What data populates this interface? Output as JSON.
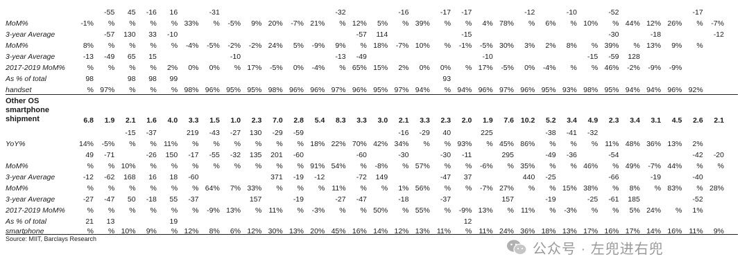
{
  "cols": 27,
  "colRight0": 133,
  "colStep": 35.6,
  "top": [
    {
      "label": "MoM%",
      "up": [
        "",
        "-55",
        "45",
        "-16",
        "16",
        "",
        "-31",
        "",
        "",
        "",
        "",
        "",
        "-32",
        "",
        "",
        "-16",
        "",
        "-17",
        "-17",
        "",
        "",
        "-12",
        "",
        "-10",
        "",
        "-52",
        "",
        "",
        "",
        "-17",
        ""
      ],
      "vals": [
        "-1%",
        "%",
        "%",
        "%",
        "%",
        "33%",
        "%",
        "-5%",
        "9%",
        "20%",
        "-7%",
        "21%",
        "%",
        "12%",
        "5%",
        "%",
        "39%",
        "%",
        "%",
        "4%",
        "78%",
        "%",
        "6%",
        "%",
        "10%",
        "%",
        "44%",
        "12%",
        "26%",
        "%",
        "-7%"
      ]
    },
    {
      "label": "3-year Average",
      "up": [],
      "vals": [
        "",
        "-57",
        "130",
        "33",
        "-10",
        "",
        "",
        "",
        "",
        "",
        "",
        "",
        "",
        "-57",
        "114",
        "",
        "",
        "",
        "-15",
        "",
        "",
        "",
        "",
        "",
        "",
        "-30",
        "",
        "-18",
        "",
        "",
        "-12"
      ]
    },
    {
      "label": "MoM%",
      "up": [],
      "vals": [
        "8%",
        "%",
        "%",
        "%",
        "%",
        "-4%",
        "-5%",
        "-2%",
        "-2%",
        "24%",
        "5%",
        "-9%",
        "9%",
        "%",
        "18%",
        "-7%",
        "10%",
        "%",
        "-1%",
        "-5%",
        "30%",
        "3%",
        "2%",
        "8%",
        "%",
        "39%",
        "%",
        "13%",
        "9%",
        "%",
        ""
      ]
    },
    {
      "label": "3-year Average",
      "up": [],
      "vals": [
        "-13",
        "-49",
        "65",
        "15",
        "",
        "",
        "",
        "-10",
        "",
        "",
        "",
        "",
        "-13",
        "-49",
        "",
        "",
        "",
        "",
        "",
        "-10",
        "",
        "",
        "",
        "",
        "-15",
        "-59",
        "128",
        "",
        "",
        "",
        ""
      ]
    },
    {
      "label": "2017-2019 MoM%",
      "up": [],
      "vals": [
        "%",
        "%",
        "%",
        "%",
        "2%",
        "0%",
        "0%",
        "%",
        "17%",
        "-5%",
        "0%",
        "-4%",
        "%",
        "65%",
        "15%",
        "2%",
        "0%",
        "0%",
        "%",
        "17%",
        "-5%",
        "0%",
        "-4%",
        "%",
        "%",
        "46%",
        "-2%",
        "-9%",
        "-9%",
        "",
        ""
      ]
    },
    {
      "label": "As % of total",
      "up": [],
      "vals": [
        "98",
        "",
        "98",
        "98",
        "99",
        "",
        "",
        "",
        "",
        "",
        "",
        "",
        "",
        "",
        "",
        "",
        "",
        "93",
        "",
        "",
        "",
        "",
        "",
        "",
        "",
        "",
        "",
        "",
        "",
        "",
        ""
      ]
    },
    {
      "label": "handset",
      "up": [],
      "vals": [
        "%",
        "97%",
        "%",
        "%",
        "%",
        "98%",
        "96%",
        "95%",
        "95%",
        "98%",
        "96%",
        "96%",
        "97%",
        "96%",
        "95%",
        "97%",
        "94%",
        "%",
        "94%",
        "96%",
        "97%",
        "96%",
        "95%",
        "93%",
        "98%",
        "95%",
        "94%",
        "94%",
        "96%",
        "92%",
        ""
      ]
    }
  ],
  "section": {
    "label_lines": [
      "Other OS",
      "smartphone",
      "shipment"
    ],
    "values": [
      "6.8",
      "1.9",
      "2.1",
      "1.6",
      "4.0",
      "3.3",
      "1.5",
      "1.0",
      "2.3",
      "7.0",
      "2.8",
      "5.4",
      "8.3",
      "3.3",
      "3.0",
      "2.1",
      "3.3",
      "2.3",
      "2.0",
      "1.9",
      "7.6",
      "10.2",
      "5.2",
      "3.4",
      "4.9",
      "2.3",
      "3.4",
      "3.1",
      "4.5",
      "2.6",
      "2.1"
    ]
  },
  "bottom": [
    {
      "label": "",
      "vals": [
        "",
        "",
        "-15",
        "-37",
        "",
        "219",
        "-43",
        "-27",
        "130",
        "-29",
        "-59",
        "",
        "",
        "",
        "",
        "-16",
        "-29",
        "40",
        "",
        "225",
        "",
        "",
        "-38",
        "-41",
        "-32",
        "",
        "",
        "",
        "",
        "",
        ""
      ]
    },
    {
      "label": "YoY%",
      "vals": [
        "14%",
        "-5%",
        "%",
        "%",
        "11%",
        "%",
        "%",
        "%",
        "%",
        "%",
        "%",
        "18%",
        "22%",
        "70%",
        "42%",
        "34%",
        "%",
        "%",
        "93%",
        "%",
        "45%",
        "86%",
        "%",
        "%",
        "%",
        "11%",
        "48%",
        "36%",
        "13%",
        "2%",
        ""
      ]
    },
    {
      "label": "",
      "vals": [
        "49",
        "-71",
        "",
        "-26",
        "150",
        "-17",
        "-55",
        "-32",
        "135",
        "201",
        "-60",
        "",
        "",
        "-60",
        "",
        "-30",
        "",
        "-30",
        "-11",
        "",
        "295",
        "",
        "-49",
        "-36",
        "",
        "-54",
        "",
        "",
        "",
        "-42",
        "-20"
      ]
    },
    {
      "label": "MoM%",
      "vals": [
        "%",
        "%",
        "10%",
        "%",
        "%",
        "%",
        "%",
        "%",
        "%",
        "%",
        "%",
        "91%",
        "54%",
        "%",
        "-8%",
        "%",
        "57%",
        "%",
        "%",
        "-6%",
        "%",
        "35%",
        "%",
        "%",
        "46%",
        "%",
        "49%",
        "-7%",
        "44%",
        "%",
        "%"
      ]
    },
    {
      "label": "3-year Average",
      "vals": [
        "-12",
        "-62",
        "168",
        "16",
        "18",
        "-60",
        "",
        "",
        "",
        "371",
        "-19",
        "-12",
        "",
        "-72",
        "149",
        "",
        "",
        "-47",
        "37",
        "",
        "",
        "440",
        "-25",
        "",
        "",
        "-66",
        "",
        "-19",
        "",
        "-40",
        ""
      ]
    },
    {
      "label": "MoM%",
      "vals": [
        "%",
        "%",
        "%",
        "%",
        "%",
        "%",
        "64%",
        "7%",
        "33%",
        "%",
        "%",
        "%",
        "11%",
        "%",
        "%",
        "1%",
        "56%",
        "%",
        "%",
        "-7%",
        "27%",
        "%",
        "%",
        "15%",
        "38%",
        "%",
        "8%",
        "%",
        "83%",
        "%",
        "28%"
      ]
    },
    {
      "label": "3-year Average",
      "vals": [
        "-27",
        "-47",
        "50",
        "-18",
        "55",
        "-37",
        "",
        "",
        "157",
        "",
        "-19",
        "",
        "-27",
        "-47",
        "",
        "-18",
        "",
        "-37",
        "",
        "",
        "157",
        "",
        "-19",
        "",
        "-25",
        "-61",
        "185",
        "",
        "",
        "-52",
        ""
      ]
    },
    {
      "label": "2017-2019 MoM%",
      "vals": [
        "%",
        "%",
        "%",
        "%",
        "%",
        "%",
        "-9%",
        "13%",
        "%",
        "11%",
        "%",
        "-3%",
        "%",
        "%",
        "50%",
        "%",
        "55%",
        "%",
        "-9%",
        "13%",
        "%",
        "11%",
        "%",
        "-3%",
        "%",
        "%",
        "5%",
        "24%",
        "%",
        "1%",
        ""
      ]
    },
    {
      "label": "As % of total",
      "vals": [
        "21",
        "13",
        "",
        "",
        "19",
        "",
        "",
        "",
        "",
        "",
        "",
        "",
        "",
        "",
        "",
        "",
        "",
        "",
        "12",
        "",
        "",
        "",
        "",
        "",
        "",
        "",
        "",
        "",
        "",
        "",
        ""
      ]
    },
    {
      "label": "smartphone",
      "vals": [
        "%",
        "%",
        "10%",
        "9%",
        "%",
        "12%",
        "8%",
        "6%",
        "12%",
        "30%",
        "13%",
        "20%",
        "45%",
        "16%",
        "14%",
        "12%",
        "13%",
        "11%",
        "%",
        "11%",
        "24%",
        "36%",
        "18%",
        "13%",
        "17%",
        "16%",
        "17%",
        "14%",
        "16%",
        "11%",
        "9%"
      ]
    }
  ],
  "source": "Source: MIIT, Barclays Research",
  "watermark": {
    "text": "公众号 · 左兜进右兜",
    "icon": "wechat-icon"
  }
}
